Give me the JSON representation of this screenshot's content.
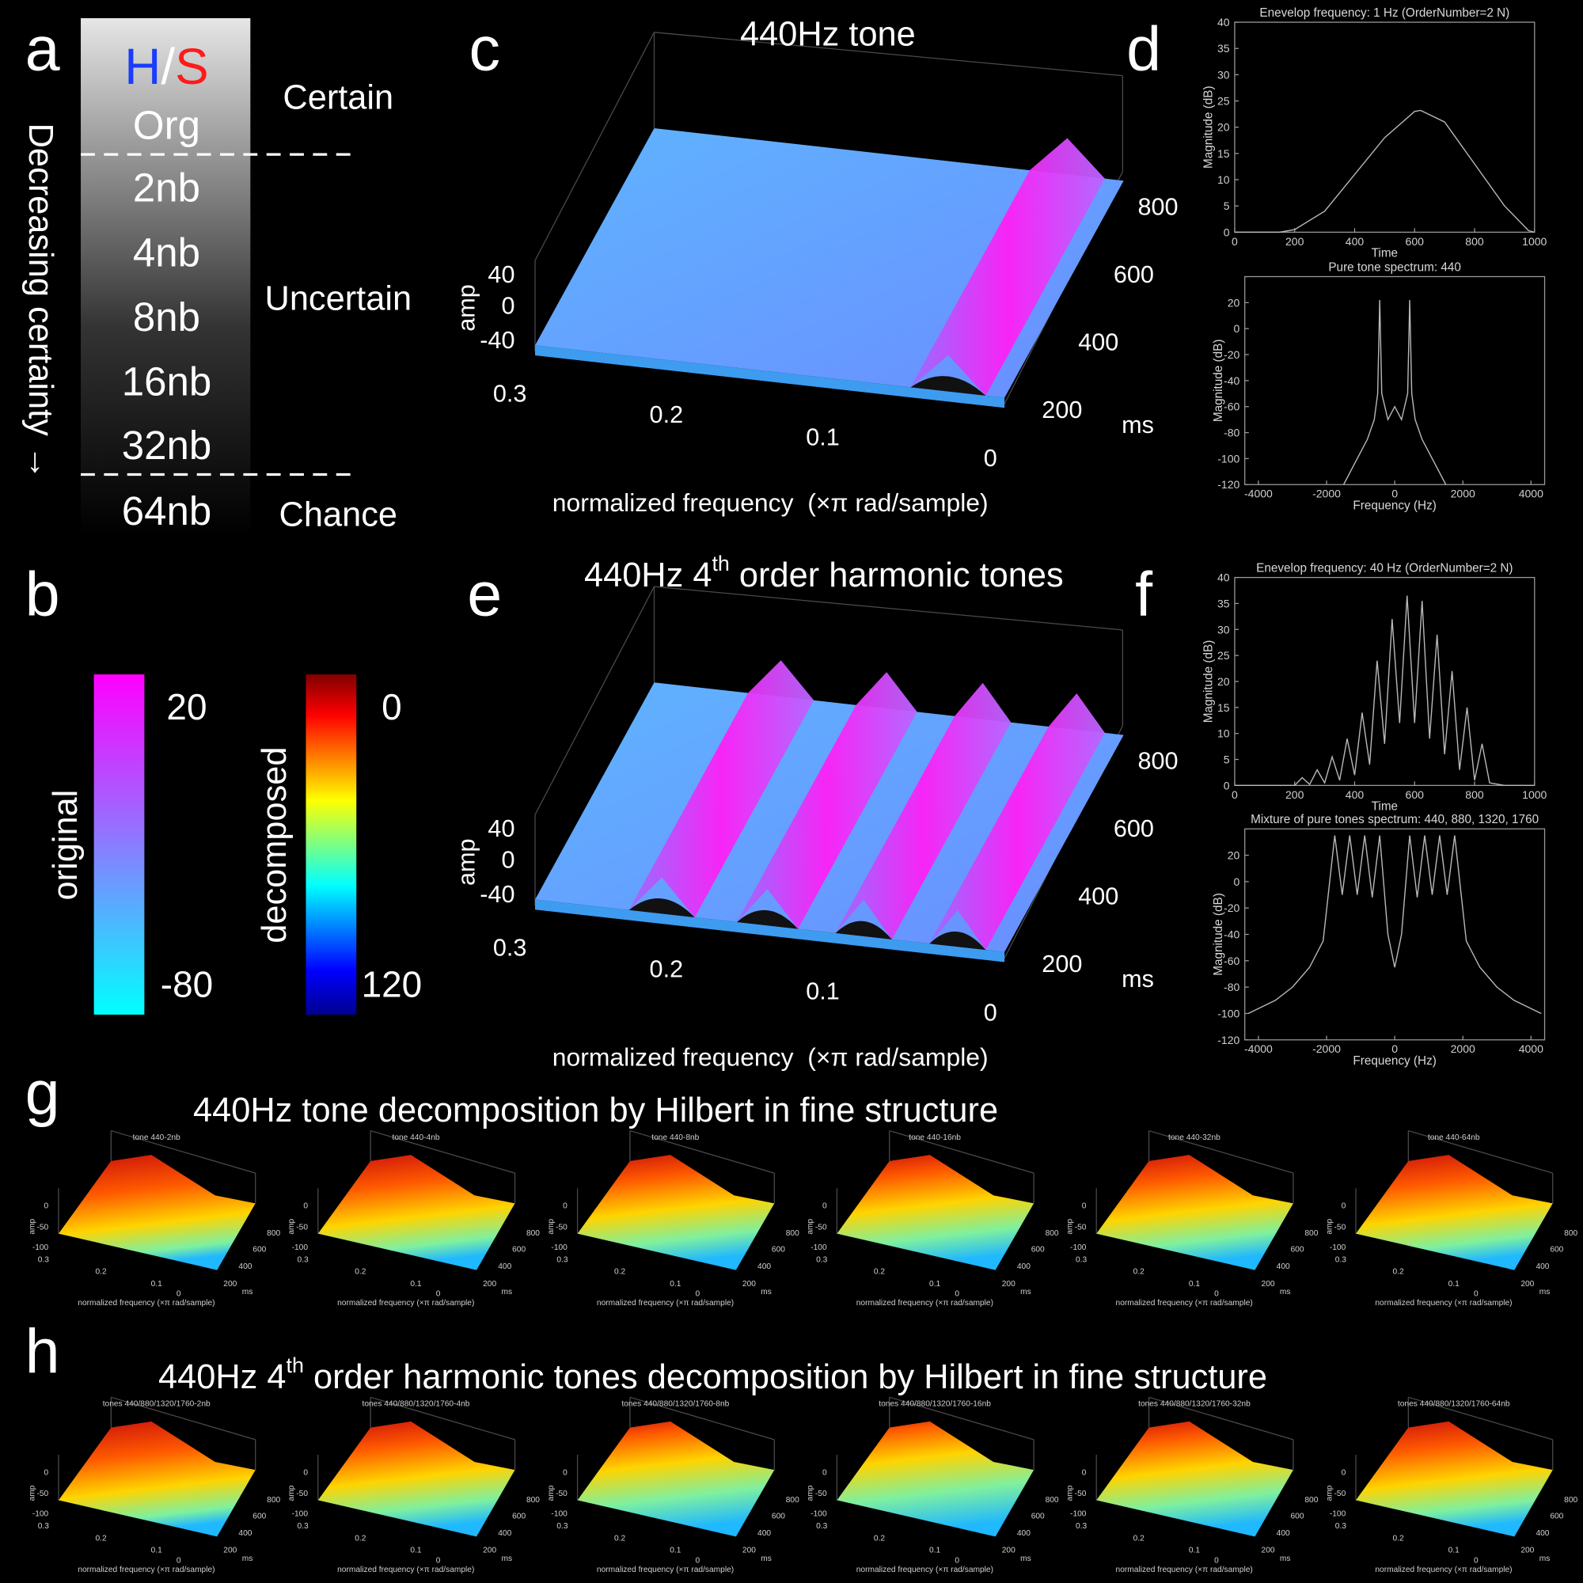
{
  "panel_labels": [
    "a",
    "b",
    "c",
    "d",
    "e",
    "f",
    "g",
    "h"
  ],
  "panel_a": {
    "header": [
      "H",
      "/",
      "S"
    ],
    "levels": [
      "Org",
      "2nb",
      "4nb",
      "8nb",
      "16nb",
      "32nb",
      "64nb"
    ],
    "zones": [
      "Certain",
      "Uncertain",
      "Chance"
    ],
    "trend": "Decreasing certainty →"
  },
  "panel_b": {
    "original": {
      "label": "original",
      "ticks": [
        20,
        -80
      ]
    },
    "decomposed": {
      "label": "decomposed",
      "ticks": [
        0,
        120
      ]
    }
  },
  "panel_c": {
    "title": [
      "440Hz tone"
    ],
    "z_label": "amp",
    "z_ticks": [
      40,
      0,
      -40
    ],
    "x_ticks": [
      0.3,
      0.2,
      0.1,
      0
    ],
    "y_ticks": [
      800,
      600,
      400,
      200
    ],
    "y_unit": "ms",
    "x_label": "normalized frequency  (×π rad/sample)"
  },
  "panel_e": {
    "title": [
      "440Hz 4",
      "th",
      " order harmonic tones"
    ],
    "z_label": "amp",
    "z_ticks": [
      40,
      0,
      -40
    ],
    "x_ticks": [
      0.3,
      0.2,
      0.1,
      0
    ],
    "y_ticks": [
      800,
      600,
      400,
      200
    ],
    "y_unit": "ms",
    "x_label": "normalized frequency  (×π rad/sample)"
  },
  "panel_g": {
    "title": [
      "440Hz tone decomposition by Hilbert in fine structure"
    ],
    "panels": [
      "tone 440-2nb",
      "tone 440-4nb",
      "tone 440-8nb",
      "tone 440-16nb",
      "tone 440-32nb",
      "tone 440-64nb"
    ]
  },
  "panel_h": {
    "title": [
      "440Hz 4",
      "th",
      " order harmonic tones decomposition by Hilbert in fine structure"
    ],
    "panels": [
      "tones 440/880/1320/1760-2nb",
      "tones 440/880/1320/1760-4nb",
      "tones 440/880/1320/1760-8nb",
      "tones 440/880/1320/1760-16nb",
      "tones 440/880/1320/1760-32nb",
      "tones 440/880/1320/1760-64nb"
    ]
  },
  "thumb_axes": {
    "z_label": "amp",
    "z_ticks": [
      0,
      -50,
      -100
    ],
    "x_ticks": [
      0.3,
      0.2,
      0.1,
      0
    ],
    "y_ticks": [
      200,
      400,
      600,
      800
    ],
    "y_unit": "ms",
    "x_label": "normalized frequency (×π rad/sample)"
  },
  "chart_data": [
    {
      "type": "line",
      "title": "Enevelop frequency: 1 Hz (OrderNumber=2 N)",
      "x_label": "Time",
      "y_label": "Magnitude (dB)",
      "color": "#b8b8b8",
      "x": [
        0,
        100,
        150,
        200,
        300,
        400,
        500,
        600,
        620,
        700,
        800,
        900,
        980,
        1000
      ],
      "values": [
        0,
        0,
        0,
        0.5,
        4,
        11,
        18,
        23,
        23.2,
        21,
        13,
        5,
        0.3,
        0
      ],
      "xlim": [
        0,
        1000
      ],
      "ylim": [
        0,
        40
      ],
      "xticks": [
        0,
        200,
        400,
        600,
        800,
        1000
      ],
      "yticks": [
        0,
        5,
        10,
        15,
        20,
        25,
        30,
        35,
        40
      ]
    },
    {
      "type": "line",
      "title": "Pure tone spectrum: 440",
      "x_label": "Frequency (Hz)",
      "y_label": "Magnitude (dB)",
      "color": "#b8b8b8",
      "x": [
        -1500,
        -1200,
        -1000,
        -800,
        -600,
        -500,
        -440,
        -380,
        -200,
        0,
        200,
        380,
        440,
        500,
        600,
        800,
        1000,
        1200,
        1500
      ],
      "values": [
        -120,
        -105,
        -95,
        -85,
        -70,
        -50,
        22,
        -50,
        -70,
        -60,
        -70,
        -50,
        22,
        -50,
        -70,
        -85,
        -95,
        -105,
        -120
      ],
      "xlim": [
        -4400,
        4400
      ],
      "ylim": [
        -120,
        40
      ],
      "xticks": [
        -4000,
        -2000,
        0,
        2000,
        4000
      ],
      "yticks": [
        20,
        0,
        -20,
        -40,
        -60,
        -80,
        -100,
        -120
      ]
    },
    {
      "type": "line",
      "title": "Enevelop frequency: 40 Hz (OrderNumber=2 N)",
      "x_label": "Time",
      "y_label": "Magnitude (dB)",
      "color": "#b8b8b8",
      "x": [
        0,
        100,
        200,
        225,
        250,
        275,
        300,
        325,
        350,
        375,
        400,
        425,
        450,
        475,
        500,
        525,
        550,
        575,
        600,
        625,
        650,
        675,
        700,
        725,
        750,
        775,
        800,
        825,
        850,
        900,
        1000
      ],
      "values": [
        0,
        0,
        0,
        1.5,
        0.2,
        3,
        0.5,
        5.5,
        1,
        9,
        2,
        14,
        4,
        24,
        8,
        32,
        12,
        36.5,
        12,
        35.5,
        9,
        29,
        6,
        22,
        3,
        15,
        1,
        8,
        0.5,
        0,
        0
      ],
      "xlim": [
        0,
        1000
      ],
      "ylim": [
        0,
        40
      ],
      "xticks": [
        0,
        200,
        400,
        600,
        800,
        1000
      ],
      "yticks": [
        0,
        5,
        10,
        15,
        20,
        25,
        30,
        35,
        40
      ]
    },
    {
      "type": "line",
      "title": "Mixture of pure tones spectrum: 440, 880, 1320, 1760",
      "x_label": "Frequency (Hz)",
      "y_label": "Magnitude (dB)",
      "color": "#b8b8b8",
      "x": [
        -4300,
        -3500,
        -3000,
        -2500,
        -2100,
        -1760,
        -1540,
        -1320,
        -1100,
        -880,
        -660,
        -440,
        -200,
        0,
        200,
        440,
        660,
        880,
        1100,
        1320,
        1540,
        1760,
        2100,
        2500,
        3000,
        3500,
        4300
      ],
      "values": [
        -100,
        -90,
        -80,
        -65,
        -45,
        35,
        -10,
        35,
        -10,
        35,
        -12,
        35,
        -40,
        -65,
        -40,
        35,
        -12,
        35,
        -10,
        35,
        -10,
        35,
        -45,
        -65,
        -80,
        -90,
        -100
      ],
      "xlim": [
        -4400,
        4400
      ],
      "ylim": [
        -120,
        40
      ],
      "xticks": [
        -4000,
        -2000,
        0,
        2000,
        4000
      ],
      "yticks": [
        20,
        0,
        -20,
        -40,
        -60,
        -80,
        -100,
        -120
      ]
    }
  ]
}
